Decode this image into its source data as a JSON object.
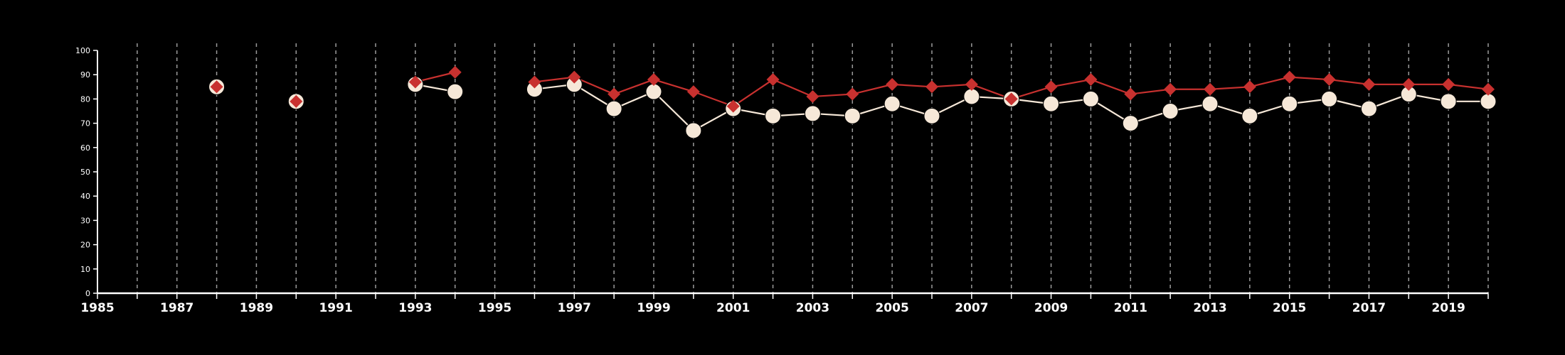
{
  "chart_data": {
    "type": "line",
    "x_range": [
      1985,
      2020
    ],
    "ylim": [
      0,
      100
    ],
    "y_ticks": [
      0,
      10,
      20,
      30,
      40,
      50,
      60,
      70,
      80,
      90,
      100
    ],
    "x_tick_labels": [
      1985,
      1987,
      1989,
      1991,
      1993,
      1995,
      1997,
      1999,
      2001,
      2003,
      2005,
      2007,
      2009,
      2011,
      2013,
      2015,
      2017,
      2019
    ],
    "grid": "vertical dashed lines at each year",
    "series": [
      {
        "marker": "circle",
        "color": "#f6e8d8",
        "points": [
          [
            1988,
            85
          ],
          [
            1990,
            79
          ],
          [
            1993,
            86
          ],
          [
            1994,
            83
          ],
          [
            1996,
            84
          ],
          [
            1997,
            86
          ],
          [
            1998,
            76
          ],
          [
            1999,
            83
          ],
          [
            2000,
            67
          ],
          [
            2001,
            76
          ],
          [
            2002,
            73
          ],
          [
            2003,
            74
          ],
          [
            2004,
            73
          ],
          [
            2005,
            78
          ],
          [
            2006,
            73
          ],
          [
            2007,
            81
          ],
          [
            2008,
            80
          ],
          [
            2009,
            78
          ],
          [
            2010,
            80
          ],
          [
            2011,
            70
          ],
          [
            2012,
            75
          ],
          [
            2013,
            78
          ],
          [
            2014,
            73
          ],
          [
            2015,
            78
          ],
          [
            2016,
            80
          ],
          [
            2017,
            76
          ],
          [
            2018,
            82
          ],
          [
            2019,
            79
          ],
          [
            2020,
            79
          ]
        ]
      },
      {
        "marker": "diamond",
        "color": "#c8312f",
        "points": [
          [
            1988,
            85
          ],
          [
            1990,
            79
          ],
          [
            1993,
            87
          ],
          [
            1994,
            91
          ],
          [
            1996,
            87
          ],
          [
            1997,
            89
          ],
          [
            1998,
            82
          ],
          [
            1999,
            88
          ],
          [
            2000,
            83
          ],
          [
            2001,
            77
          ],
          [
            2002,
            88
          ],
          [
            2003,
            81
          ],
          [
            2004,
            82
          ],
          [
            2005,
            86
          ],
          [
            2006,
            85
          ],
          [
            2007,
            86
          ],
          [
            2008,
            80
          ],
          [
            2009,
            85
          ],
          [
            2010,
            88
          ],
          [
            2011,
            82
          ],
          [
            2012,
            84
          ],
          [
            2013,
            84
          ],
          [
            2014,
            85
          ],
          [
            2015,
            89
          ],
          [
            2016,
            88
          ],
          [
            2017,
            86
          ],
          [
            2018,
            86
          ],
          [
            2019,
            86
          ],
          [
            2020,
            84
          ]
        ]
      }
    ]
  }
}
